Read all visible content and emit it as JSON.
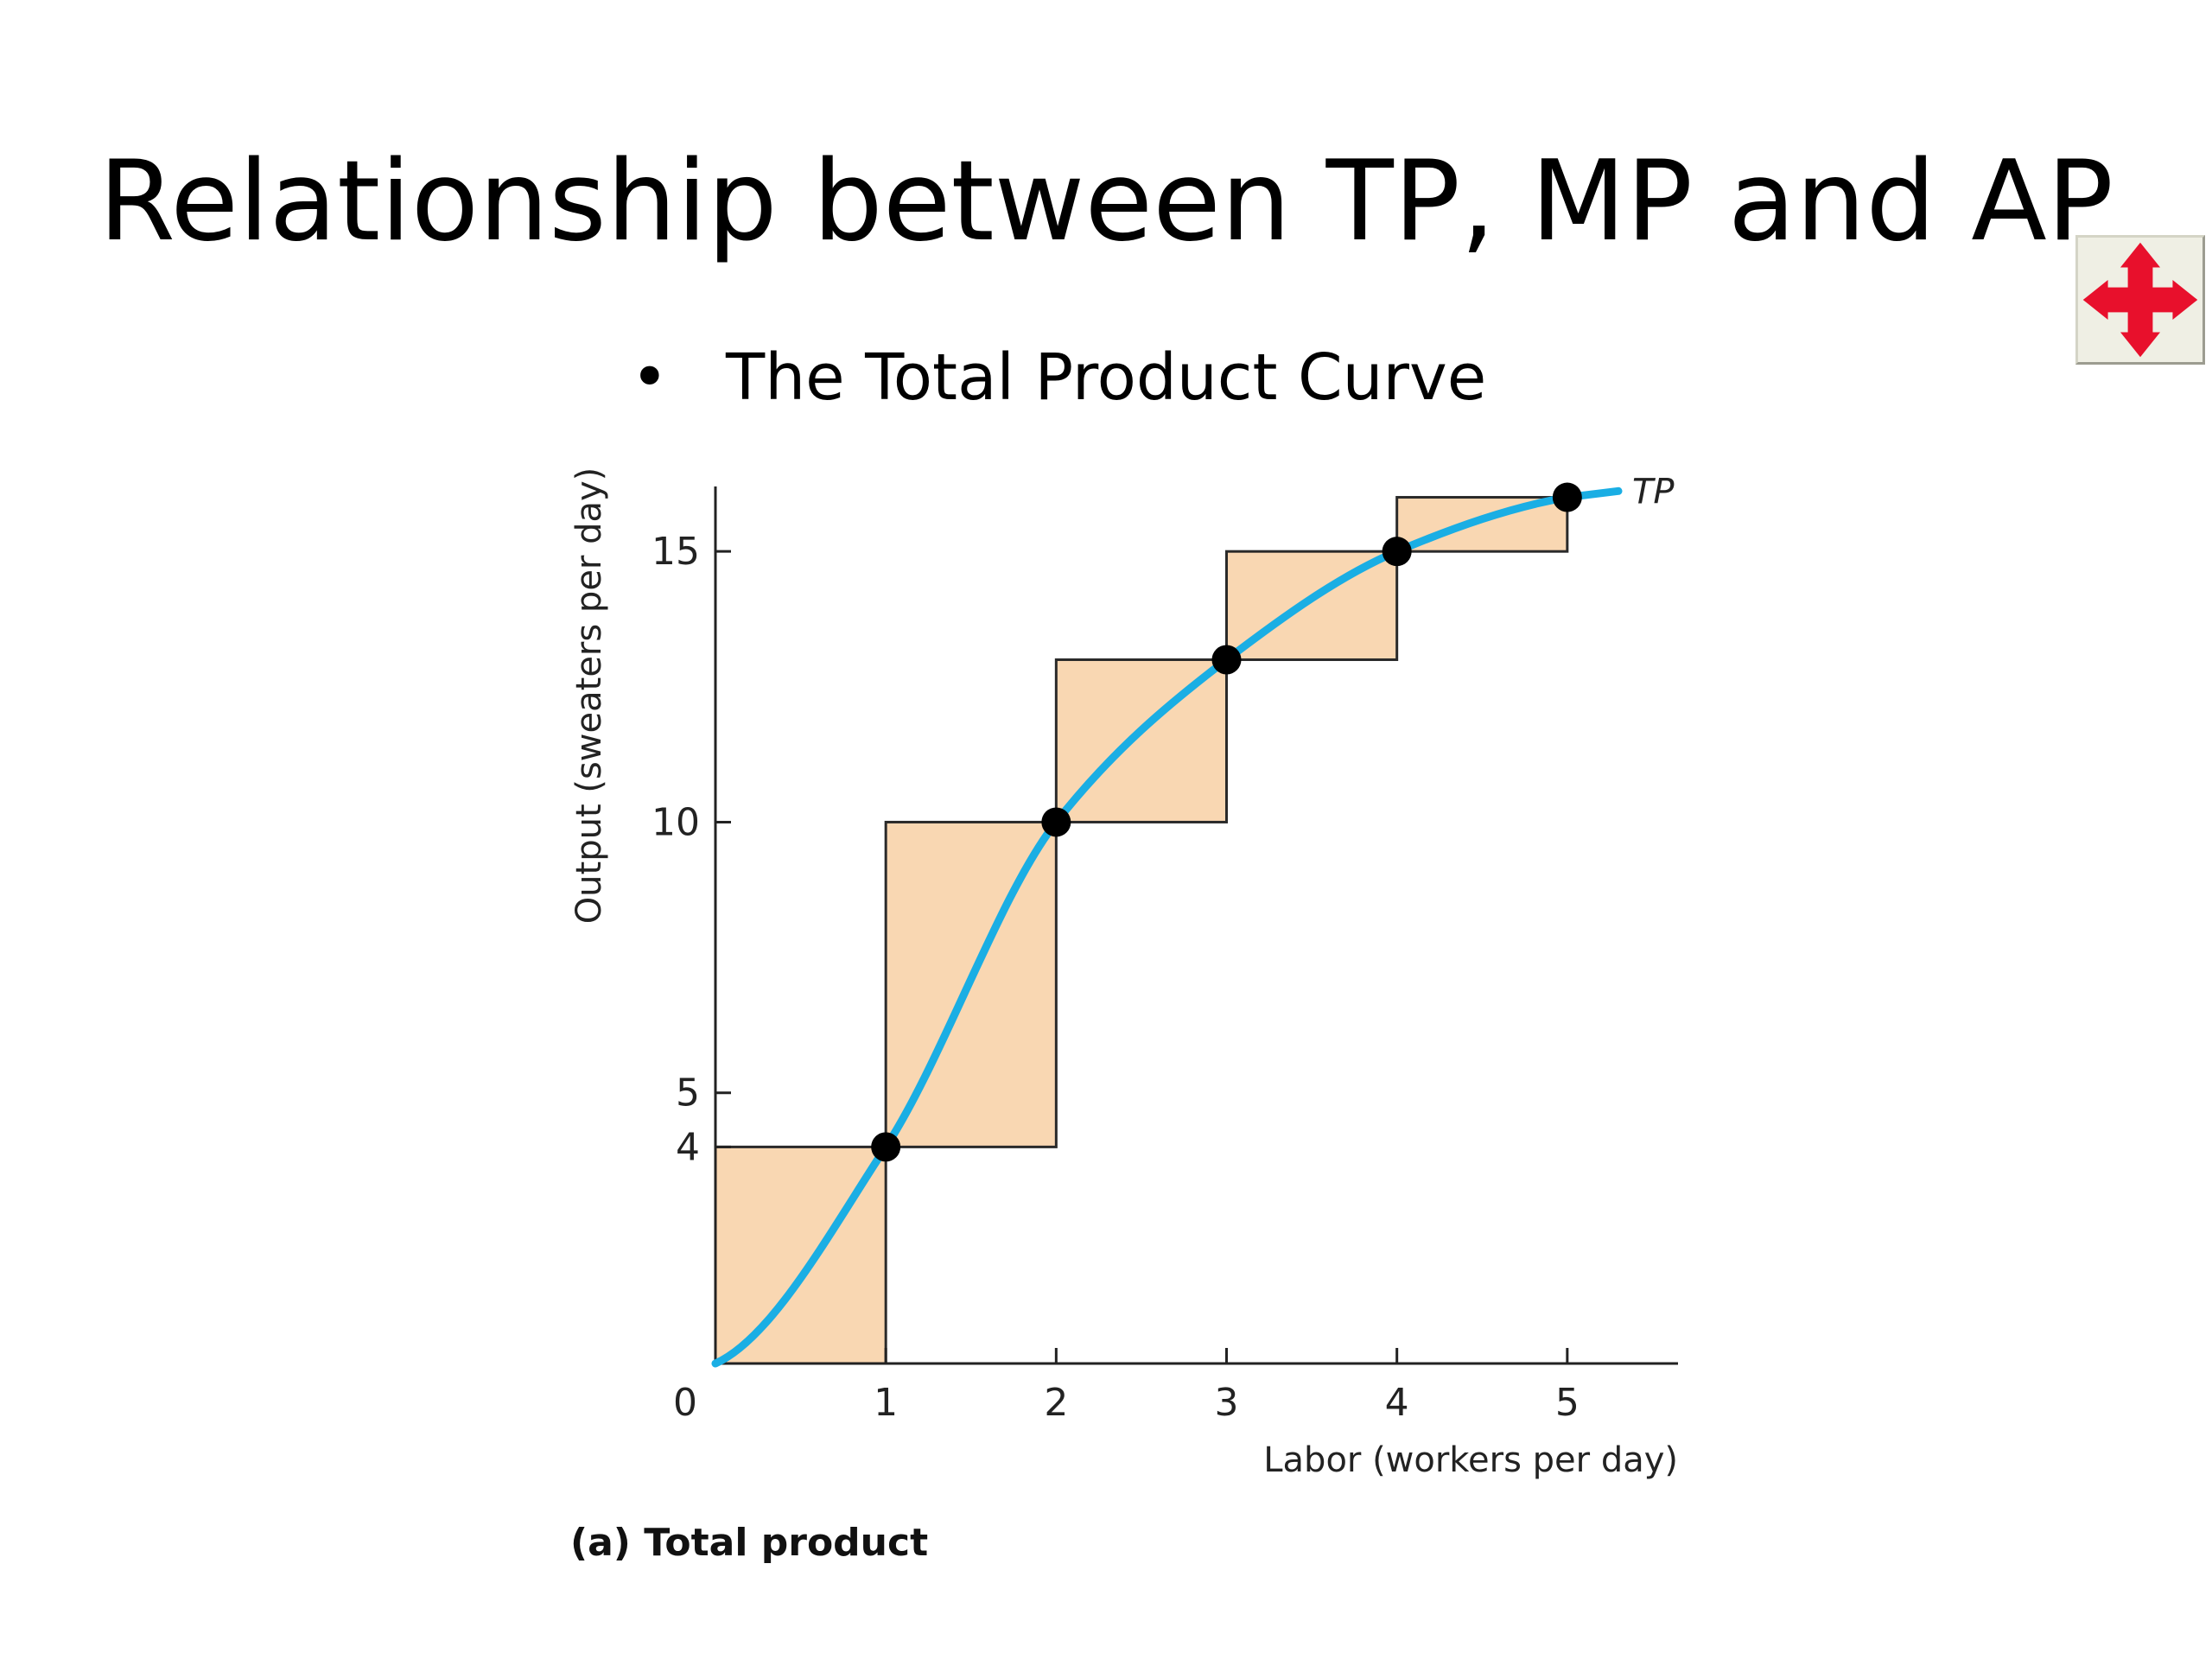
{
  "slide": {
    "title": "Relationship between TP, MP and AP",
    "bullet": "The Total Product Curve",
    "bullet_glyph": "•"
  },
  "toolbar": {
    "move_icon": "move-arrows-icon",
    "move_icon_color": "#e8102c"
  },
  "chart_data": {
    "type": "line",
    "caption": "(a) Total product",
    "xlabel": "Labor (workers per day)",
    "ylabel": "Output (sweaters per day)",
    "series": [
      {
        "name": "TP",
        "x": [
          0,
          1,
          2,
          3,
          4,
          5
        ],
        "values": [
          0,
          4,
          10,
          13,
          15,
          16
        ]
      }
    ],
    "x_ticks": [
      0,
      1,
      2,
      3,
      4,
      5
    ],
    "y_ticks": [
      4,
      5,
      10,
      15
    ],
    "xlim": [
      0,
      5.65
    ],
    "ylim": [
      0,
      16.2
    ],
    "marginal_steps": [
      {
        "from_x": 0,
        "to_x": 1,
        "from_y": 0,
        "to_y": 4
      },
      {
        "from_x": 1,
        "to_x": 2,
        "from_y": 4,
        "to_y": 10
      },
      {
        "from_x": 2,
        "to_x": 3,
        "from_y": 10,
        "to_y": 13
      },
      {
        "from_x": 3,
        "to_x": 4,
        "from_y": 13,
        "to_y": 15
      },
      {
        "from_x": 4,
        "to_x": 5,
        "from_y": 15,
        "to_y": 16
      }
    ],
    "curve_extends_to_x": 5.3,
    "colors": {
      "curve": "#1aaee4",
      "step_fill": "#f9d7b2",
      "step_stroke": "#2a2a2a",
      "point": "#000000",
      "axis": "#222222"
    },
    "grid": false,
    "legend": "none"
  }
}
